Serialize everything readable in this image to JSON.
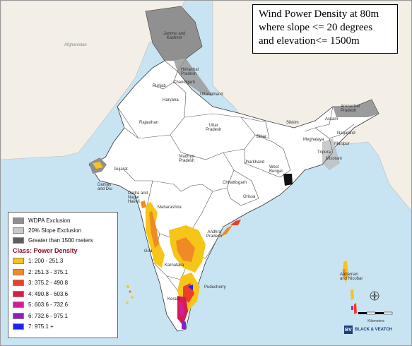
{
  "title": {
    "line1": "Wind Power Density at 80m",
    "line2": "where slope <= 20 degrees",
    "line3": "and elevation<= 1500m"
  },
  "legend": {
    "exclusions": [
      {
        "label": "WDPA Exclusion",
        "color": "#8f8f8f"
      },
      {
        "label": "20% Slope Exclusion",
        "color": "#c9c9c9"
      },
      {
        "label": "Greater than 1500 meters",
        "color": "#5e5e5e"
      }
    ],
    "class_heading": "Class: Power Density",
    "classes": [
      {
        "label": "1:  200 - 251.3",
        "color": "#f5c518"
      },
      {
        "label": "2:  251.3 - 375.1",
        "color": "#f08a24"
      },
      {
        "label": "3:  375.2 - 490.8",
        "color": "#e8402a"
      },
      {
        "label": "4:  490.8 - 603.6",
        "color": "#d81b4a"
      },
      {
        "label": "5:  603.6 - 732.6",
        "color": "#d01d9c"
      },
      {
        "label": "6:  732.6 - 975.1",
        "color": "#8b1fc4"
      },
      {
        "label": "7:  975.1 +",
        "color": "#2222ee"
      }
    ]
  },
  "regions": [
    {
      "name": "Jammu and Kashmir",
      "label": "Jammu and\nKashmir"
    },
    {
      "name": "Himachal Pradesh",
      "label": "Himachal\nPradesh"
    },
    {
      "name": "Punjab",
      "label": "Punjab"
    },
    {
      "name": "Chandigarh",
      "label": "Chandigarh"
    },
    {
      "name": "Uttarakhand",
      "label": "Uttarakhand"
    },
    {
      "name": "Haryana",
      "label": "Haryana"
    },
    {
      "name": "Rajasthan",
      "label": "Rajasthan"
    },
    {
      "name": "Uttar Pradesh",
      "label": "Uttar\nPradesh"
    },
    {
      "name": "Bihar",
      "label": "Bihar"
    },
    {
      "name": "Sikkim",
      "label": "Sikkim"
    },
    {
      "name": "Arunachal Pradesh",
      "label": "Arunachal\nPradesh"
    },
    {
      "name": "Assam",
      "label": "Assam"
    },
    {
      "name": "Nagaland",
      "label": "Nagaland"
    },
    {
      "name": "Meghalaya",
      "label": "Meghalaya"
    },
    {
      "name": "Manipur",
      "label": "Manipur"
    },
    {
      "name": "Tripura",
      "label": "Tripura"
    },
    {
      "name": "Mizoram",
      "label": "Mizoram"
    },
    {
      "name": "Gujarat",
      "label": "Gujarat"
    },
    {
      "name": "Madhya Pradesh",
      "label": "Madhya\nPradesh"
    },
    {
      "name": "Jharkhand",
      "label": "Jharkhand"
    },
    {
      "name": "West Bengal",
      "label": "West\nBengal"
    },
    {
      "name": "Chhattisgarh",
      "label": "Chhattisgarh"
    },
    {
      "name": "Orissa",
      "label": "Orissa"
    },
    {
      "name": "Daman and Diu",
      "label": "Daman\nand Diu"
    },
    {
      "name": "Dadra and Nagar Haveli",
      "label": "Dadra and\nNagar\nHaveli"
    },
    {
      "name": "Maharashtra",
      "label": "Maharashtra"
    },
    {
      "name": "Andhra Pradesh",
      "label": "Andhra\nPradesh"
    },
    {
      "name": "Goa",
      "label": "Goa"
    },
    {
      "name": "Karnataka",
      "label": "Karnataka"
    },
    {
      "name": "Puducherry",
      "label": "Puducherry"
    },
    {
      "name": "Kerala",
      "label": "Kerala"
    },
    {
      "name": "Andaman and Nicobar",
      "label": "Andaman\nand Nicobar"
    },
    {
      "name": "Afghanistan",
      "label": "Afghanistan"
    }
  ],
  "scale": {
    "unit": "Kilometers"
  },
  "logo": {
    "mark": "BV",
    "name": "BLACK & VEATCH"
  }
}
